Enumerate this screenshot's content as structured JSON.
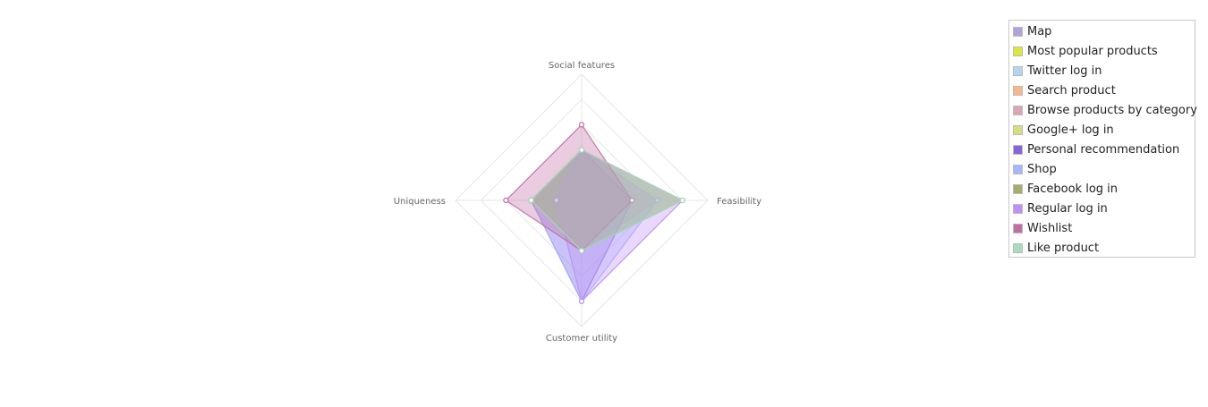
{
  "chart_data": {
    "type": "radar",
    "axes": [
      "Social features",
      "Feasibility",
      "Customer utility",
      "Uniqueness"
    ],
    "range": [
      0,
      5
    ],
    "grid": true,
    "legend_position": "top-right",
    "series": [
      {
        "name": "Map",
        "color": "#b3a2d7",
        "values": [
          1,
          3,
          2,
          1
        ]
      },
      {
        "name": "Most popular products",
        "color": "#dde63a",
        "values": [
          2,
          4,
          2,
          2
        ]
      },
      {
        "name": "Twitter log in",
        "color": "#b5d3f2",
        "values": [
          2,
          4,
          2,
          2
        ]
      },
      {
        "name": "Search product",
        "color": "#f7b78a",
        "values": [
          2,
          3,
          2,
          2
        ]
      },
      {
        "name": "Browse products by category",
        "color": "#d9a6b3",
        "values": [
          2,
          3,
          2,
          2
        ]
      },
      {
        "name": "Google+ log in",
        "color": "#d6de82",
        "values": [
          2,
          4,
          2,
          2
        ]
      },
      {
        "name": "Personal recommendation",
        "color": "#8b63d8",
        "values": [
          2,
          2,
          4,
          2
        ]
      },
      {
        "name": "Shop",
        "color": "#a9b6ff",
        "values": [
          2,
          3,
          4,
          2
        ]
      },
      {
        "name": "Facebook log in",
        "color": "#a8ad6a",
        "values": [
          2,
          4,
          2,
          2
        ]
      },
      {
        "name": "Regular log in",
        "color": "#c08ef7",
        "values": [
          2,
          4,
          4,
          1
        ]
      },
      {
        "name": "Wishlist",
        "color": "#c06da4",
        "values": [
          3,
          2,
          2,
          3
        ]
      },
      {
        "name": "Like product",
        "color": "#a8dcc0",
        "values": [
          2,
          4,
          2,
          2
        ]
      }
    ]
  }
}
